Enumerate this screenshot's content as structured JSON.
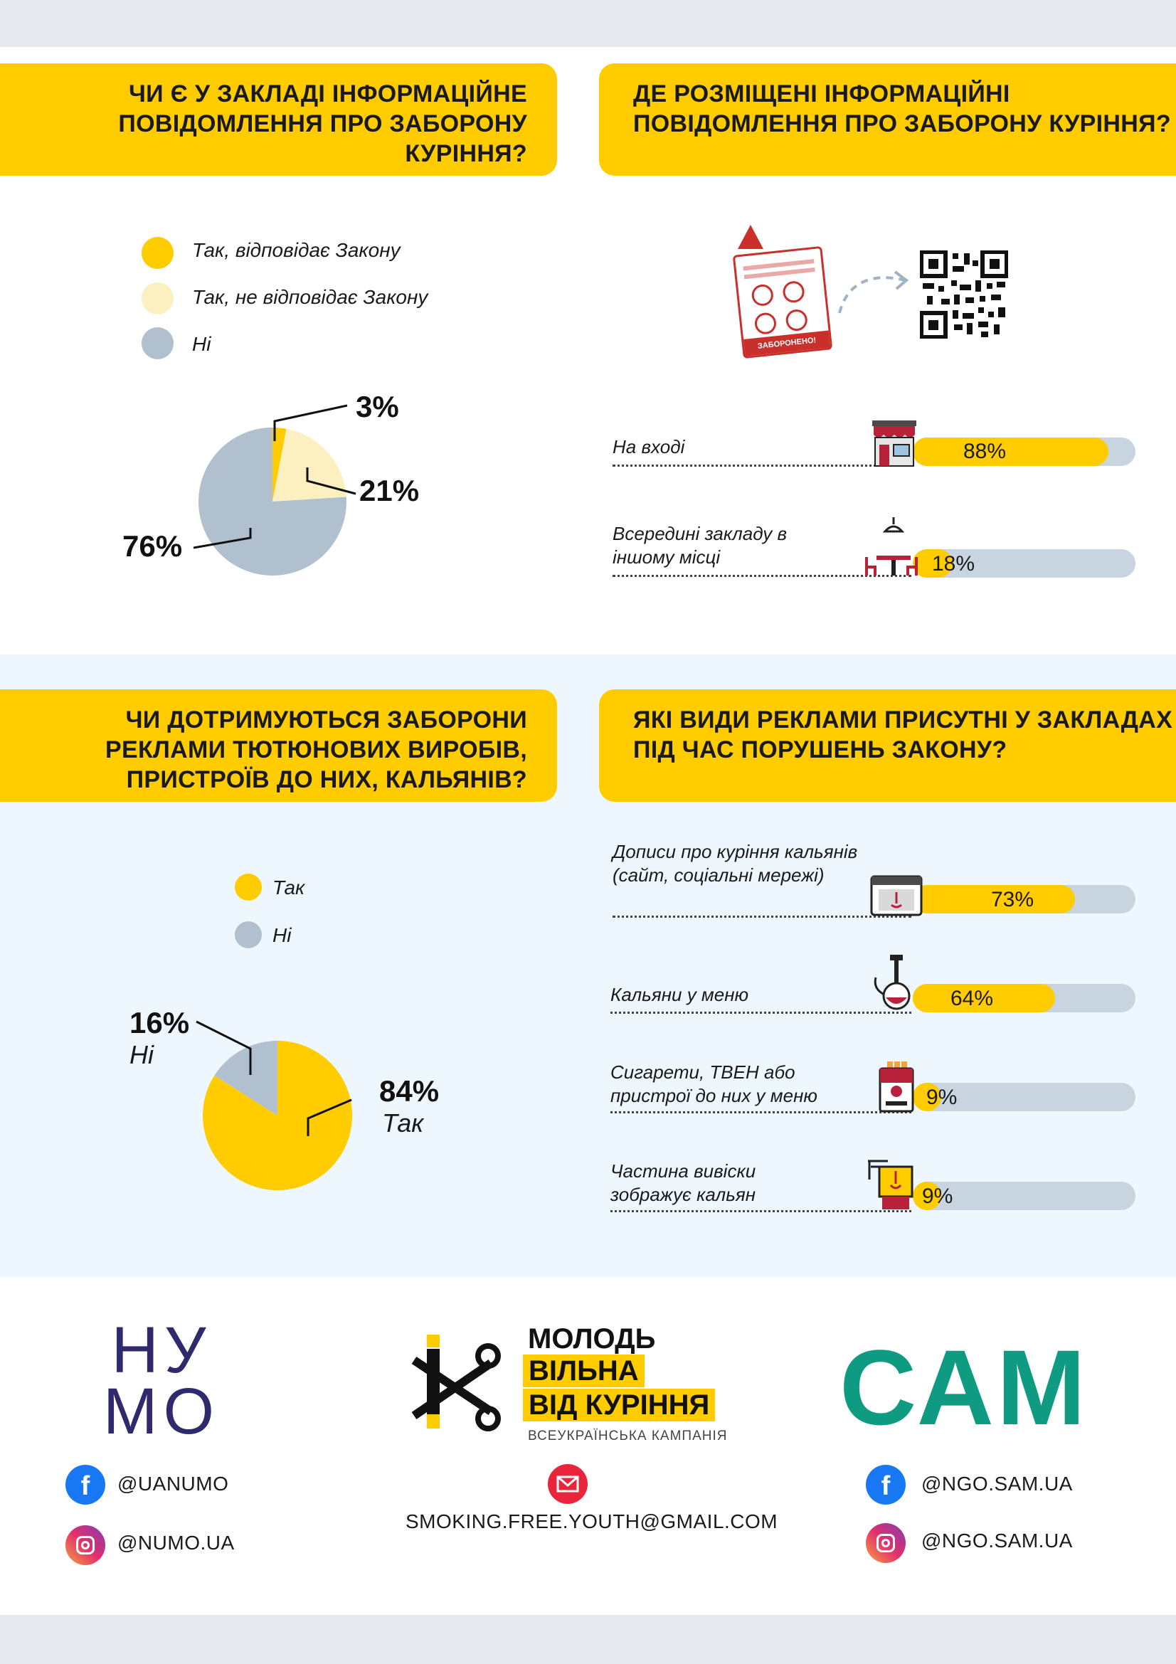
{
  "section1": {
    "left_title": "ЧИ Є У ЗАКЛАДІ ІНФОРМАЦІЙНЕ ПОВІДОМЛЕННЯ ПРО ЗАБОРОНУ КУРІННЯ?",
    "right_title": "ДЕ РОЗМІЩЕНІ ІНФОРМАЦІЙНІ ПОВІДОМЛЕННЯ ПРО ЗАБОРОНУ КУРІННЯ?",
    "sign_text": "ЗАБОРОНЕНО!"
  },
  "section2": {
    "left_title": "ЧИ ДОТРИМУЮТЬСЯ ЗАБОРОНИ РЕКЛАМИ ТЮТЮНОВИХ ВИРОБІВ, ПРИСТРОЇВ ДО НИХ, КАЛЬЯНІВ?",
    "right_title": "ЯКІ ВИДИ РЕКЛАМИ ПРИСУТНІ У ЗАКЛАДАХ ПІД ЧАС ПОРУШЕНЬ ЗАКОНУ?"
  },
  "colors": {
    "yellow": "#ffcc00",
    "light_yellow": "#fdf0c0",
    "grey_blue": "#b0c0cf",
    "track": "#c8d4df",
    "navy": "#2e2a6b",
    "teal": "#0e9b82"
  },
  "chart_data": [
    {
      "type": "pie",
      "legend": [
        "Так, відповідає Закону",
        "Так, не відповідає Закону",
        "Ні"
      ],
      "labels": [
        "3%",
        "21%",
        "76%"
      ],
      "values": [
        3,
        21,
        76
      ],
      "colors": [
        "#ffcc00",
        "#fdf0c0",
        "#b0c0cf"
      ]
    },
    {
      "type": "bar",
      "categories": [
        "На вході",
        "Всередині закладу в іншому місці"
      ],
      "values": [
        88,
        18
      ],
      "labels": [
        "88%",
        "18%"
      ],
      "xlim": [
        0,
        100
      ]
    },
    {
      "type": "pie",
      "legend": [
        "Так",
        "Ні"
      ],
      "labels": [
        "84%",
        "16%"
      ],
      "sublabels": [
        "Так",
        "Ні"
      ],
      "values": [
        84,
        16
      ],
      "colors": [
        "#ffcc00",
        "#b0c0cf"
      ]
    },
    {
      "type": "bar",
      "categories": [
        "Дописи про куріння кальянів (сайт, соціальні мережі)",
        "Кальяни у меню",
        "Сигарети, ТВЕН або пристрої до них у меню",
        "Частина вивіски зображує кальян"
      ],
      "values": [
        73,
        64,
        9,
        9
      ],
      "labels": [
        "73%",
        "64%",
        "9%",
        "9%"
      ],
      "xlim": [
        0,
        100
      ]
    }
  ],
  "footer": {
    "numo_line1": "НУ",
    "numo_line2": "МО",
    "campaign_line1": "МОЛОДЬ",
    "campaign_line2": "ВІЛЬНА",
    "campaign_line3": "ВІД КУРІННЯ",
    "campaign_sub": "ВСЕУКРАЇНСЬКА КАМПАНІЯ",
    "sam": "САМ",
    "numo_fb": "@UANUMO",
    "numo_ig": "@NUMO.UA",
    "email": "SMOKING.FREE.YOUTH@GMAIL.COM",
    "sam_fb": "@NGO.SAM.UA",
    "sam_ig": "@NGO.SAM.UA"
  }
}
